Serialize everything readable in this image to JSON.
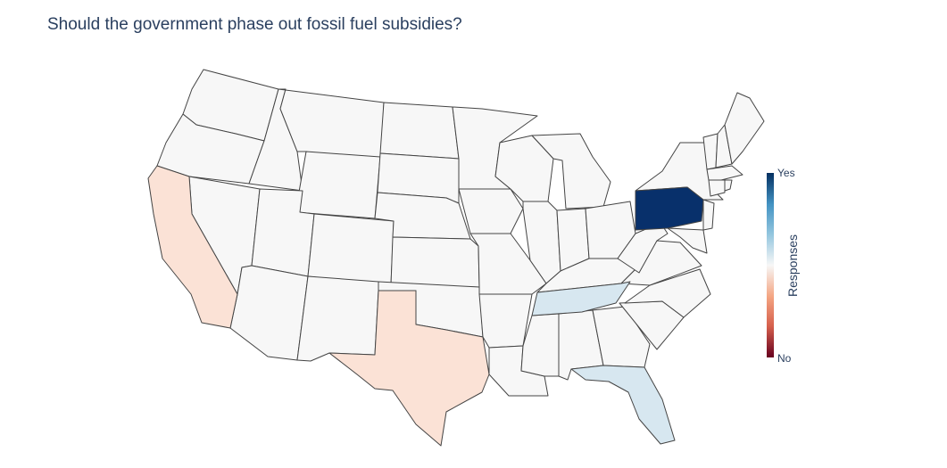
{
  "title": "Should the government phase out fossil fuel subsidies?",
  "colorbar": {
    "title": "Responses",
    "ticks": [
      "Yes",
      "No"
    ],
    "colorscale": [
      "#67001f",
      "#d6604d",
      "#f4a582",
      "#f7f7f7",
      "#92c5de",
      "#4393c3",
      "#053061"
    ]
  },
  "colors": {
    "neutral": "#f7f7f7",
    "light_red": "#fbe2d6",
    "light_blue": "#d7e7f0",
    "dark_blue": "#08306b"
  },
  "states_highlighted": [
    {
      "state": "California",
      "response": "leaning No"
    },
    {
      "state": "Texas",
      "response": "leaning No"
    },
    {
      "state": "Tennessee",
      "response": "leaning Yes"
    },
    {
      "state": "Florida",
      "response": "leaning Yes"
    },
    {
      "state": "Pennsylvania",
      "response": "Yes"
    }
  ]
}
